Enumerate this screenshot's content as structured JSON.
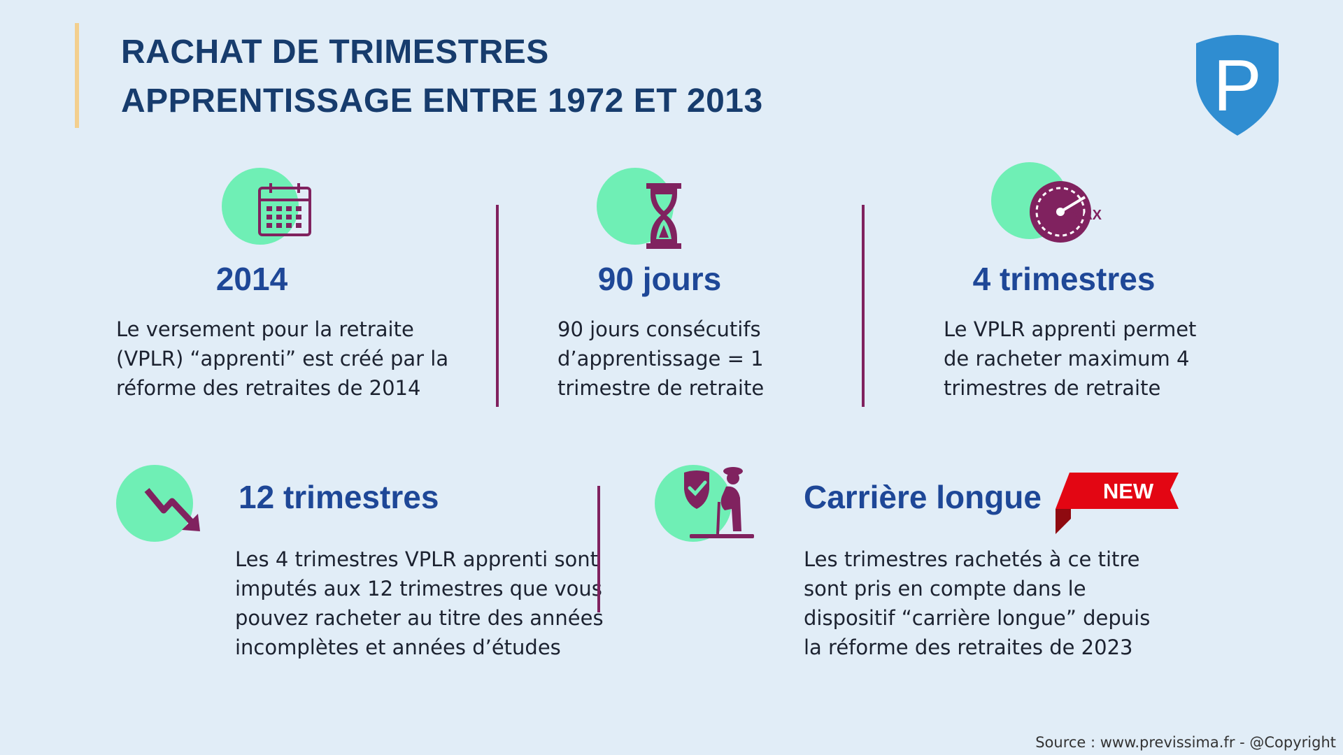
{
  "header": {
    "title_line1": "RACHAT DE TRIMESTRES",
    "title_line2": "APPRENTISSAGE ENTRE 1972 ET 2013",
    "logo_letter": "P",
    "logo_icon": "shield-p-logo"
  },
  "colors": {
    "background": "#e1edf7",
    "title": "#173c6d",
    "heading": "#1e4797",
    "icon_circle": "#6fefb5",
    "icon_purple": "#80225f",
    "divider": "#80225f",
    "accent_bar": "#f3cf8e",
    "logo": "#2f8dd1",
    "new_badge": "#e30613"
  },
  "cards": [
    {
      "icon": "calendar-icon",
      "heading": "2014",
      "lines": [
        "Le versement pour la retraite",
        "(VPLR) “apprenti” est créé par la",
        "réforme des retraites de 2014"
      ]
    },
    {
      "icon": "hourglass-icon",
      "heading": "90 jours",
      "lines": [
        "90 jours consécutifs",
        "d’apprentissage = 1",
        "trimestre de retraite"
      ]
    },
    {
      "icon": "speedometer-max-icon",
      "icon_text": "MAX",
      "heading": "4 trimestres",
      "lines": [
        "Le VPLR apprenti permet",
        "de racheter maximum 4",
        "trimestres de retraite"
      ]
    },
    {
      "icon": "down-trend-arrow-icon",
      "heading": "12 trimestres",
      "lines": [
        "Les 4 trimestres VPLR apprenti sont",
        "imputés aux 12 trimestres que vous",
        "pouvez racheter au titre des années",
        "incomplètes et années d’études"
      ]
    },
    {
      "icon": "elderly-shield-check-icon",
      "heading": "Carrière longue",
      "badge": "NEW",
      "lines": [
        "Les trimestres rachetés à ce titre",
        "sont pris en compte dans le",
        "dispositif “carrière longue” depuis",
        "la réforme des retraites de 2023"
      ]
    }
  ],
  "footer": {
    "source": "Source : www.previssima.fr - @Copyright"
  }
}
